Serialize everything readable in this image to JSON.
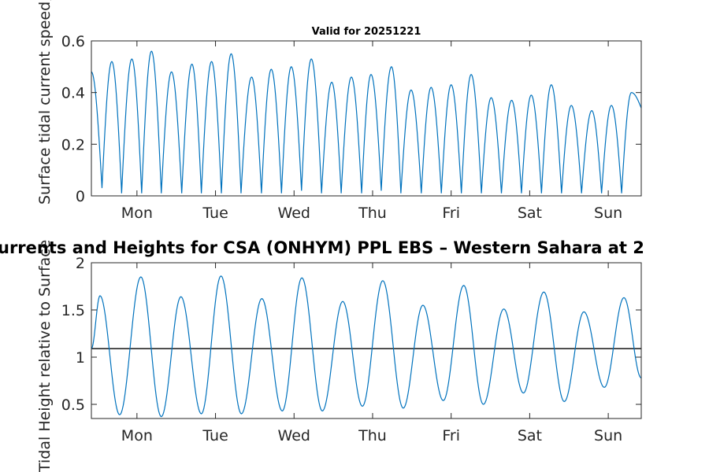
{
  "main_title": "urrents and Heights for CSA (ONHYM) PPL EBS  – Western Sahara at 2",
  "colors": {
    "series": "#0072BD",
    "reference": "#000000",
    "axis": "#262626"
  },
  "chart_data": [
    {
      "type": "line",
      "title": "Valid for 20251221",
      "xlabel": "",
      "ylabel": "Surface tidal current speed, kn",
      "xlim": [
        0,
        7
      ],
      "ylim": [
        0,
        0.6
      ],
      "yticks": [
        0,
        0.2,
        0.4,
        0.6
      ],
      "ytick_labels": [
        "0",
        "0.2",
        "0.4",
        "0.6"
      ],
      "xticks": [
        0.58,
        1.58,
        2.58,
        3.58,
        4.58,
        5.58,
        6.58
      ],
      "xtick_labels": [
        "Mon",
        "Tue",
        "Wed",
        "Thu",
        "Fri",
        "Sat",
        "Sun"
      ],
      "series": [
        {
          "name": "current speed",
          "x": [
            0,
            0.135,
            0.26,
            0.385,
            0.515,
            0.64,
            0.765,
            0.89,
            1.02,
            1.15,
            1.28,
            1.4,
            1.53,
            1.655,
            1.78,
            1.905,
            2.04,
            2.165,
            2.29,
            2.42,
            2.545,
            2.675,
            2.8,
            2.93,
            3.06,
            3.18,
            3.31,
            3.44,
            3.56,
            3.69,
            3.82,
            3.94,
            4.07,
            4.2,
            4.325,
            4.455,
            4.58,
            4.71,
            4.835,
            4.965,
            5.09,
            5.22,
            5.35,
            5.475,
            5.6,
            5.73,
            5.855,
            5.985,
            6.11,
            6.24,
            6.37,
            6.495,
            6.62,
            6.75,
            6.875,
            7.0
          ],
          "y": [
            0.48,
            0.03,
            0.52,
            0.01,
            0.53,
            0.01,
            0.56,
            0.01,
            0.48,
            0.01,
            0.51,
            0.01,
            0.52,
            0.01,
            0.55,
            0.01,
            0.46,
            0.01,
            0.49,
            0.01,
            0.5,
            0.02,
            0.53,
            0.01,
            0.44,
            0.01,
            0.46,
            0.01,
            0.47,
            0.02,
            0.5,
            0.01,
            0.41,
            0.01,
            0.42,
            0.01,
            0.43,
            0.01,
            0.47,
            0.01,
            0.38,
            0.01,
            0.37,
            0.01,
            0.39,
            0.01,
            0.43,
            0.01,
            0.35,
            0.01,
            0.33,
            0.01,
            0.35,
            0.01,
            0.4,
            0.34
          ]
        }
      ]
    },
    {
      "type": "line",
      "title": "",
      "xlabel": "",
      "ylabel": "Tidal Height relative to Surface",
      "xlim": [
        0,
        7
      ],
      "ylim": [
        0.35,
        2.0
      ],
      "yticks": [
        0.5,
        1,
        1.5,
        2
      ],
      "ytick_labels": [
        "0.5",
        "1",
        "1.5",
        "2"
      ],
      "xticks": [
        0.58,
        1.58,
        2.58,
        3.58,
        4.58,
        5.58,
        6.58
      ],
      "xtick_labels": [
        "Mon",
        "Tue",
        "Wed",
        "Thu",
        "Fri",
        "Sat",
        "Sun"
      ],
      "reference_line": 1.09,
      "series": [
        {
          "name": "tidal height",
          "x": [
            0,
            0.11,
            0.36,
            0.63,
            0.89,
            1.14,
            1.4,
            1.65,
            1.91,
            2.17,
            2.43,
            2.68,
            2.94,
            3.2,
            3.45,
            3.71,
            3.97,
            4.22,
            4.48,
            4.74,
            4.99,
            5.25,
            5.5,
            5.76,
            6.02,
            6.27,
            6.53,
            6.78,
            7.0
          ],
          "y": [
            1.09,
            1.65,
            0.39,
            1.85,
            0.37,
            1.64,
            0.4,
            1.86,
            0.4,
            1.62,
            0.43,
            1.84,
            0.43,
            1.59,
            0.48,
            1.81,
            0.46,
            1.55,
            0.54,
            1.76,
            0.5,
            1.51,
            0.62,
            1.69,
            0.53,
            1.48,
            0.68,
            1.63,
            0.78
          ]
        }
      ]
    }
  ]
}
